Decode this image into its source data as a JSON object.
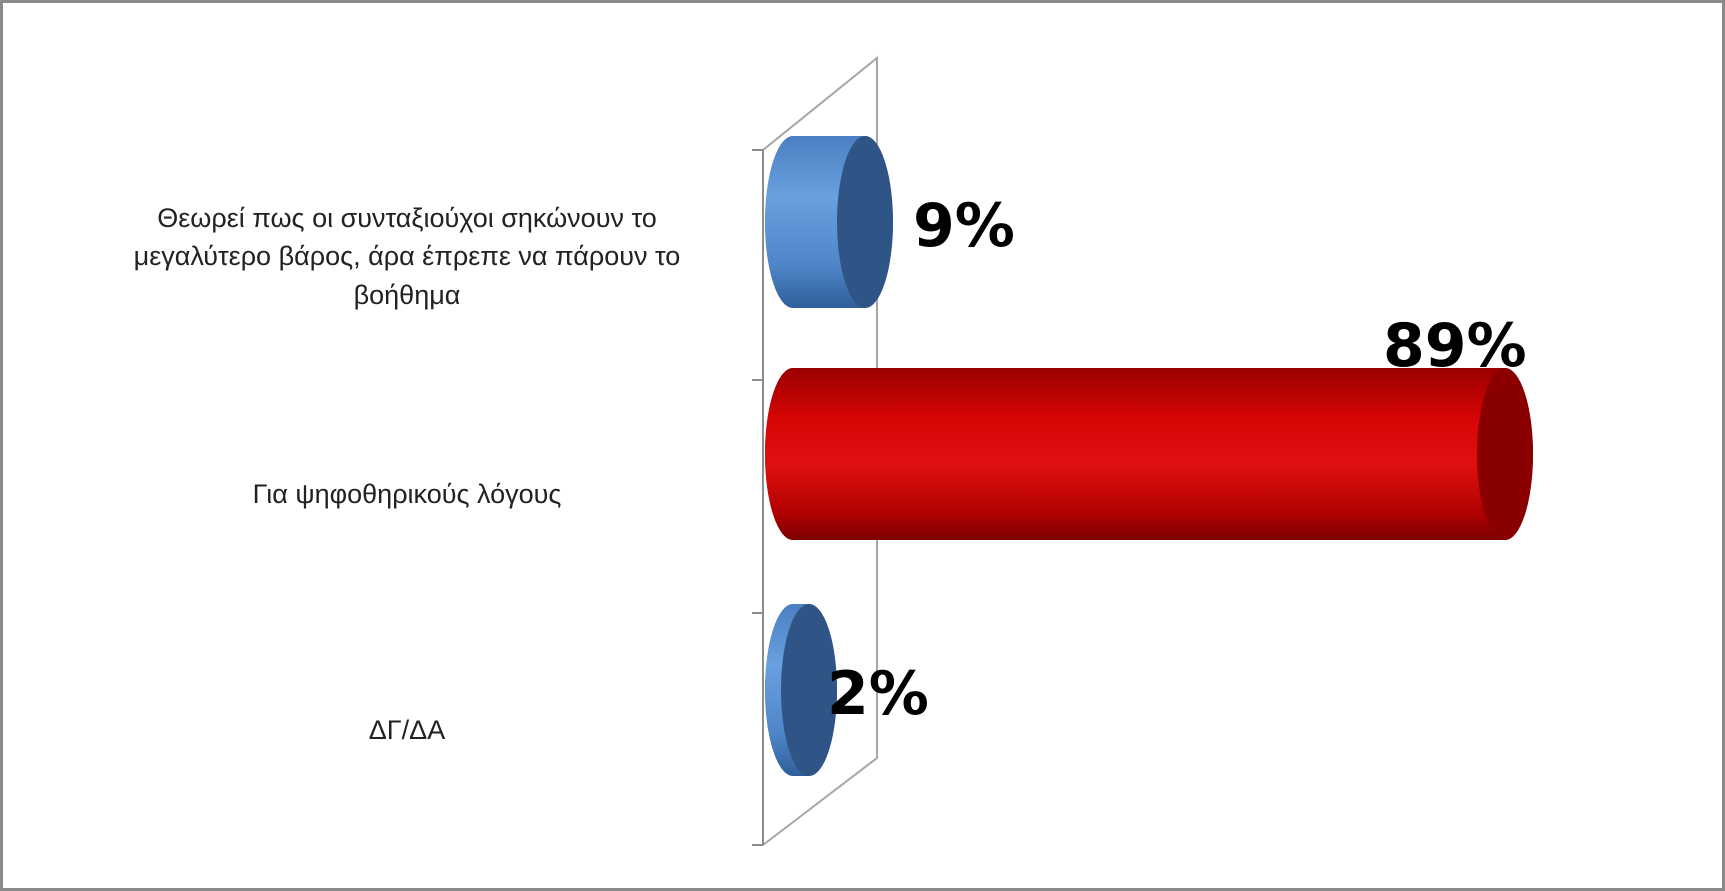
{
  "chart_data": {
    "type": "bar",
    "orientation": "horizontal",
    "style": "3d-cylinder",
    "categories": [
      "Θεωρεί πως οι συνταξιούχοι σηκώνουν το μεγαλύτερο βάρος, άρα έπρεπε να πάρουν το βοήθημα",
      "Για  ψηφοθηρικούς λόγους",
      "ΔΓ/ΔΑ"
    ],
    "values": [
      9,
      89,
      2
    ],
    "data_labels": [
      "9%",
      "89%",
      "2%"
    ],
    "bar_colors": [
      "#4f81bd",
      "#c00000",
      "#4f81bd"
    ],
    "xlim": [
      0,
      100
    ],
    "grid": false,
    "legend": "none"
  }
}
